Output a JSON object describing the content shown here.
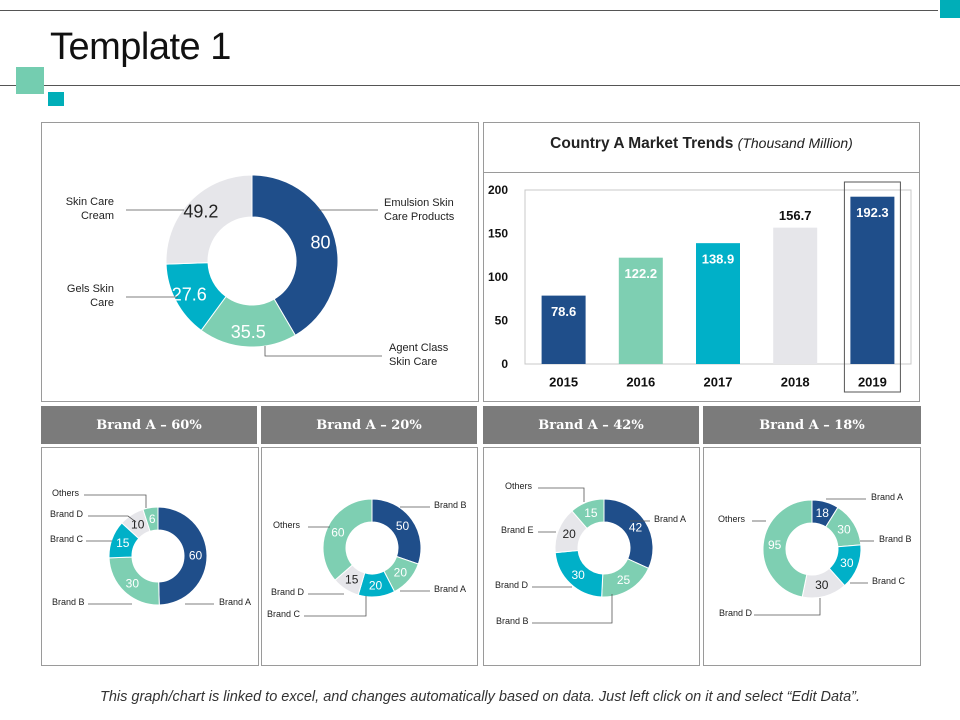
{
  "page": {
    "title": "Template 1",
    "footer": "This graph/chart is linked to excel, and changes automatically based on data.  Just left click on it and select “Edit Data”."
  },
  "colors": {
    "navy": "#1f4e8a",
    "mint": "#7ecfb2",
    "teal": "#00b0c8",
    "light_gray": "#e6e6ea",
    "header_gray": "#7b7b7b",
    "accent_teal": "#00aeb8",
    "accent_mint": "#74cdb0"
  },
  "chart_data": [
    {
      "type": "pie",
      "variant": "donut",
      "labels": [
        "Emulsion Skin Care Products",
        "Agent Class Skin Care",
        "Gels Skin Care",
        "Skin Care Cream"
      ],
      "values": [
        80,
        35.5,
        27.6,
        49.2
      ],
      "value_labels": [
        "80",
        "35.5",
        "27.6",
        "49.2"
      ]
    },
    {
      "type": "bar",
      "title": "Country A Market Trends",
      "subtitle": "(Thousand Million)",
      "categories": [
        "2015",
        "2016",
        "2017",
        "2018",
        "2019"
      ],
      "values": [
        78.6,
        122.2,
        138.9,
        156.7,
        192.3
      ],
      "value_labels": [
        "78.6",
        "122.2",
        "138.9",
        "156.7",
        "192.3"
      ],
      "yticks": [
        "0",
        "50",
        "100",
        "150",
        "200"
      ],
      "ylim": [
        0,
        200
      ]
    },
    {
      "type": "pie",
      "variant": "donut",
      "header": "Brand A – 60%",
      "labels": [
        "Brand A",
        "Brand B",
        "Brand C",
        "Brand D",
        "Others"
      ],
      "values": [
        60,
        30,
        15,
        10,
        6
      ],
      "value_labels": [
        "60",
        "30",
        "15",
        "10",
        "6"
      ]
    },
    {
      "type": "pie",
      "variant": "donut",
      "header": "Brand A – 20%",
      "labels": [
        "Brand B",
        "Brand A",
        "Brand C",
        "Brand D",
        "Others"
      ],
      "values": [
        50,
        20,
        20,
        15,
        60
      ],
      "value_labels": [
        "50",
        "20",
        "20",
        "15",
        "60"
      ]
    },
    {
      "type": "pie",
      "variant": "donut",
      "header": "Brand A – 42%",
      "labels": [
        "Brand A",
        "Brand B",
        "Brand D",
        "Brand E",
        "Others"
      ],
      "values": [
        42,
        25,
        30,
        20,
        15
      ],
      "value_labels": [
        "42",
        "25",
        "30",
        "20",
        "15"
      ]
    },
    {
      "type": "pie",
      "variant": "donut",
      "header": "Brand A – 18%",
      "labels": [
        "Brand A",
        "Brand B",
        "Brand C",
        "Brand D",
        "Others"
      ],
      "values": [
        18,
        30,
        30,
        30,
        95
      ],
      "value_labels": [
        "18",
        "30",
        "30",
        "30",
        "95"
      ]
    }
  ]
}
